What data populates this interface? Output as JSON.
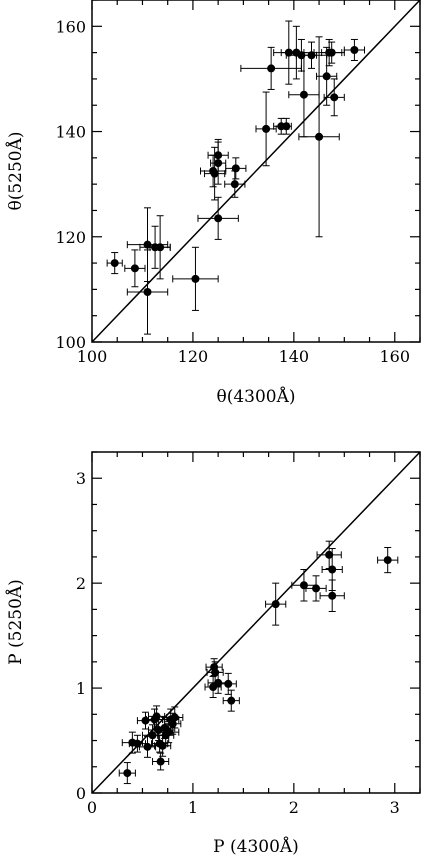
{
  "chart_data": [
    {
      "type": "scatter",
      "xlabel": "θ(4300Å)",
      "ylabel": "θ(5250Å)",
      "xlim": [
        100,
        165
      ],
      "ylim": [
        100,
        165
      ],
      "xticks": [
        "100",
        "120",
        "140",
        "160"
      ],
      "yticks": [
        "100",
        "120",
        "140",
        "160"
      ],
      "reference_line": "y = x",
      "points": [
        {
          "x": 104.5,
          "y": 115.0,
          "xerr": 1.5,
          "yerr": 2.0
        },
        {
          "x": 108.5,
          "y": 114.0,
          "xerr": 2.0,
          "yerr": 3.5
        },
        {
          "x": 111.0,
          "y": 109.5,
          "xerr": 4.0,
          "yerr": 8.0
        },
        {
          "x": 111.0,
          "y": 118.5,
          "xerr": 4.0,
          "yerr": 7.0
        },
        {
          "x": 112.5,
          "y": 118.0,
          "xerr": 3.0,
          "yerr": 4.0
        },
        {
          "x": 113.5,
          "y": 118.0,
          "xerr": 2.0,
          "yerr": 6.0
        },
        {
          "x": 120.5,
          "y": 112.0,
          "xerr": 4.5,
          "yerr": 6.0
        },
        {
          "x": 124.0,
          "y": 132.5,
          "xerr": 2.5,
          "yerr": 3.0
        },
        {
          "x": 124.3,
          "y": 132.0,
          "xerr": 2.0,
          "yerr": 5.0
        },
        {
          "x": 125.0,
          "y": 135.5,
          "xerr": 2.0,
          "yerr": 3.0
        },
        {
          "x": 125.0,
          "y": 123.5,
          "xerr": 4.0,
          "yerr": 4.0
        },
        {
          "x": 125.0,
          "y": 134.0,
          "xerr": 1.5,
          "yerr": 4.0
        },
        {
          "x": 128.3,
          "y": 130.0,
          "xerr": 2.0,
          "yerr": 2.5
        },
        {
          "x": 128.5,
          "y": 133.0,
          "xerr": 2.0,
          "yerr": 2.0
        },
        {
          "x": 134.5,
          "y": 140.5,
          "xerr": 2.0,
          "yerr": 7.0
        },
        {
          "x": 135.5,
          "y": 152.0,
          "xerr": 6.0,
          "yerr": 4.0
        },
        {
          "x": 137.5,
          "y": 141.0,
          "xerr": 1.5,
          "yerr": 1.5
        },
        {
          "x": 138.5,
          "y": 141.0,
          "xerr": 1.0,
          "yerr": 1.5
        },
        {
          "x": 139.0,
          "y": 155.0,
          "xerr": 3.0,
          "yerr": 6.0
        },
        {
          "x": 140.5,
          "y": 155.0,
          "xerr": 3.0,
          "yerr": 5.0
        },
        {
          "x": 141.5,
          "y": 154.5,
          "xerr": 3.0,
          "yerr": 3.0
        },
        {
          "x": 142.0,
          "y": 147.0,
          "xerr": 3.0,
          "yerr": 8.0
        },
        {
          "x": 143.5,
          "y": 154.5,
          "xerr": 3.0,
          "yerr": 2.5
        },
        {
          "x": 145.0,
          "y": 139.0,
          "xerr": 4.0,
          "yerr": 19.0
        },
        {
          "x": 146.5,
          "y": 150.5,
          "xerr": 2.0,
          "yerr": 5.5
        },
        {
          "x": 147.0,
          "y": 155.0,
          "xerr": 3.0,
          "yerr": 2.5
        },
        {
          "x": 147.5,
          "y": 155.0,
          "xerr": 2.0,
          "yerr": 2.0
        },
        {
          "x": 148.0,
          "y": 146.5,
          "xerr": 2.0,
          "yerr": 3.5
        },
        {
          "x": 152.0,
          "y": 155.5,
          "xerr": 2.0,
          "yerr": 2.0
        }
      ]
    },
    {
      "type": "scatter",
      "xlabel": "P (4300Å)",
      "ylabel": "P (5250Å)",
      "xlim": [
        0,
        3.25
      ],
      "ylim": [
        0,
        3.25
      ],
      "xticks": [
        "0",
        "1",
        "2",
        "3"
      ],
      "yticks": [
        "0",
        "1",
        "2",
        "3"
      ],
      "reference_line": "y = x",
      "points": [
        {
          "x": 0.35,
          "y": 0.19,
          "xerr": 0.08,
          "yerr": 0.1
        },
        {
          "x": 0.4,
          "y": 0.48,
          "xerr": 0.1,
          "yerr": 0.1
        },
        {
          "x": 0.45,
          "y": 0.47,
          "xerr": 0.08,
          "yerr": 0.08
        },
        {
          "x": 0.53,
          "y": 0.69,
          "xerr": 0.08,
          "yerr": 0.08
        },
        {
          "x": 0.55,
          "y": 0.44,
          "xerr": 0.08,
          "yerr": 0.1
        },
        {
          "x": 0.6,
          "y": 0.55,
          "xerr": 0.1,
          "yerr": 0.1
        },
        {
          "x": 0.62,
          "y": 0.7,
          "xerr": 0.08,
          "yerr": 0.1
        },
        {
          "x": 0.64,
          "y": 0.73,
          "xerr": 0.08,
          "yerr": 0.1
        },
        {
          "x": 0.66,
          "y": 0.6,
          "xerr": 0.1,
          "yerr": 0.1
        },
        {
          "x": 0.67,
          "y": 0.47,
          "xerr": 0.08,
          "yerr": 0.08
        },
        {
          "x": 0.68,
          "y": 0.3,
          "xerr": 0.08,
          "yerr": 0.08
        },
        {
          "x": 0.7,
          "y": 0.45,
          "xerr": 0.08,
          "yerr": 0.1
        },
        {
          "x": 0.72,
          "y": 0.62,
          "xerr": 0.1,
          "yerr": 0.1
        },
        {
          "x": 0.73,
          "y": 0.55,
          "xerr": 0.08,
          "yerr": 0.1
        },
        {
          "x": 0.76,
          "y": 0.58,
          "xerr": 0.1,
          "yerr": 0.1
        },
        {
          "x": 0.78,
          "y": 0.7,
          "xerr": 0.08,
          "yerr": 0.1
        },
        {
          "x": 0.8,
          "y": 0.66,
          "xerr": 0.08,
          "yerr": 0.1
        },
        {
          "x": 0.82,
          "y": 0.72,
          "xerr": 0.08,
          "yerr": 0.1
        },
        {
          "x": 1.2,
          "y": 1.01,
          "xerr": 0.08,
          "yerr": 0.1
        },
        {
          "x": 1.21,
          "y": 1.2,
          "xerr": 0.08,
          "yerr": 0.08
        },
        {
          "x": 1.22,
          "y": 1.15,
          "xerr": 0.08,
          "yerr": 0.1
        },
        {
          "x": 1.25,
          "y": 1.05,
          "xerr": 0.1,
          "yerr": 0.1
        },
        {
          "x": 1.35,
          "y": 1.04,
          "xerr": 0.08,
          "yerr": 0.1
        },
        {
          "x": 1.38,
          "y": 0.88,
          "xerr": 0.08,
          "yerr": 0.1
        },
        {
          "x": 1.82,
          "y": 1.8,
          "xerr": 0.1,
          "yerr": 0.2
        },
        {
          "x": 2.1,
          "y": 1.98,
          "xerr": 0.12,
          "yerr": 0.15
        },
        {
          "x": 2.22,
          "y": 1.95,
          "xerr": 0.1,
          "yerr": 0.12
        },
        {
          "x": 2.35,
          "y": 2.27,
          "xerr": 0.12,
          "yerr": 0.13
        },
        {
          "x": 2.38,
          "y": 2.13,
          "xerr": 0.1,
          "yerr": 0.2
        },
        {
          "x": 2.38,
          "y": 1.88,
          "xerr": 0.12,
          "yerr": 0.15
        },
        {
          "x": 2.93,
          "y": 2.22,
          "xerr": 0.1,
          "yerr": 0.12
        }
      ]
    }
  ]
}
